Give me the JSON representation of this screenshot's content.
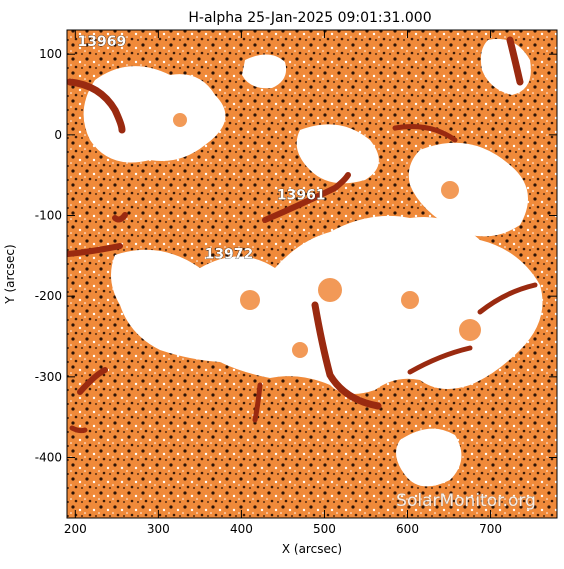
{
  "title": "H-alpha 25-Jan-2025 09:01:31.000",
  "x_axis": {
    "label": "X (arcsec)",
    "ticks": [
      "200",
      "300",
      "400",
      "500",
      "600",
      "700"
    ],
    "values": [
      200,
      300,
      400,
      500,
      600,
      700
    ],
    "range": [
      190,
      780
    ]
  },
  "y_axis": {
    "label": "Y (arcsec)",
    "ticks": [
      "100",
      "0",
      "-100",
      "-200",
      "-300",
      "-400"
    ],
    "values": [
      100,
      0,
      -100,
      -200,
      -300,
      -400
    ],
    "range": [
      -475,
      130
    ]
  },
  "active_regions": [
    {
      "id": "13969",
      "x": 232,
      "y": 110
    },
    {
      "id": "13961",
      "x": 472,
      "y": -80
    },
    {
      "id": "13972",
      "x": 385,
      "y": -153
    }
  ],
  "watermark": "SolarMonitor.org",
  "colors": {
    "background": "#ffffff",
    "chromosphere": "#f08030",
    "filament": "#9a2a10",
    "dark_speckle": "#3a1a08"
  }
}
